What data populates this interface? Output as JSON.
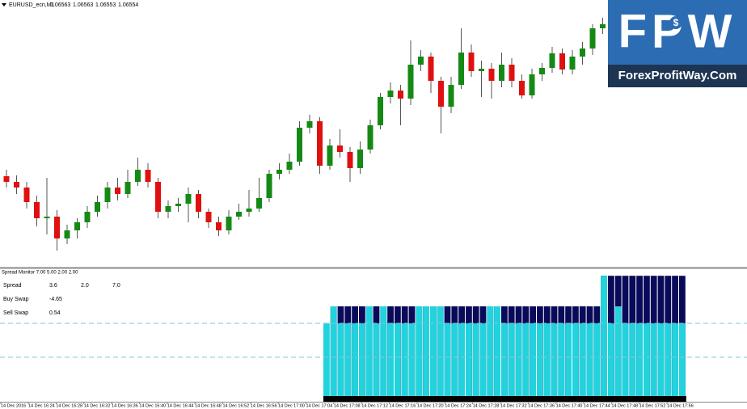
{
  "header": {
    "symbol": "EURUSD_ecn,M1",
    "ohlc": [
      1.06563,
      1.06563,
      1.06553,
      1.06554
    ]
  },
  "chart_data": [
    {
      "type": "candlestick",
      "ylim": [
        1.0639,
        1.0672
      ],
      "up_color": "#148a14",
      "down_color": "#e01010",
      "open": [
        1.06502,
        1.06495,
        1.06488,
        1.0647,
        1.0645,
        1.06452,
        1.06425,
        1.06435,
        1.06445,
        1.06458,
        1.0647,
        1.06488,
        1.0648,
        1.06495,
        1.0651,
        1.06495,
        1.06458,
        1.06465,
        1.06468,
        1.0648,
        1.06458,
        1.06445,
        1.06435,
        1.06452,
        1.06458,
        1.06462,
        1.06475,
        1.06505,
        1.0651,
        1.0652,
        1.06562,
        1.0657,
        1.06515,
        1.0654,
        1.06532,
        1.06512,
        1.06535,
        1.06565,
        1.066,
        1.06608,
        1.06598,
        1.0664,
        1.0665,
        1.0662,
        1.06588,
        1.06615,
        1.06655,
        1.06632,
        1.06635,
        1.0662,
        1.0664,
        1.0662,
        1.06602,
        1.06628,
        1.06636,
        1.06654,
        1.06634,
        1.0665,
        1.0666,
        1.06685
      ],
      "high": [
        1.0651,
        1.06503,
        1.06495,
        1.06478,
        1.065,
        1.0646,
        1.06442,
        1.0645,
        1.06465,
        1.06478,
        1.06495,
        1.065,
        1.0651,
        1.06525,
        1.06518,
        1.065,
        1.06472,
        1.06475,
        1.06488,
        1.06485,
        1.06462,
        1.06452,
        1.0646,
        1.06468,
        1.06485,
        1.065,
        1.0651,
        1.06518,
        1.0653,
        1.0657,
        1.06578,
        1.06575,
        1.06548,
        1.0656,
        1.06538,
        1.06545,
        1.06572,
        1.06605,
        1.06618,
        1.06615,
        1.0667,
        1.06658,
        1.06655,
        1.06625,
        1.06625,
        1.06685,
        1.06665,
        1.06645,
        1.06642,
        1.06655,
        1.06648,
        1.06628,
        1.06635,
        1.06642,
        1.06662,
        1.0666,
        1.06658,
        1.06668,
        1.0669,
        1.06698
      ],
      "low": [
        1.06488,
        1.0648,
        1.06462,
        1.0644,
        1.0643,
        1.0641,
        1.06418,
        1.06425,
        1.06438,
        1.06452,
        1.06462,
        1.06472,
        1.06475,
        1.0649,
        1.06488,
        1.0645,
        1.0645,
        1.06458,
        1.06445,
        1.0645,
        1.06438,
        1.06428,
        1.0643,
        1.06448,
        1.06452,
        1.06458,
        1.0647,
        1.06498,
        1.06505,
        1.06515,
        1.06555,
        1.06505,
        1.0651,
        1.06525,
        1.06495,
        1.06505,
        1.0653,
        1.0656,
        1.06592,
        1.06565,
        1.0659,
        1.06632,
        1.06605,
        1.06555,
        1.0658,
        1.0661,
        1.06625,
        1.066,
        1.06598,
        1.06612,
        1.06612,
        1.06598,
        1.06598,
        1.0662,
        1.0663,
        1.06628,
        1.06628,
        1.0664,
        1.06652,
        1.06678
      ],
      "close": [
        1.06495,
        1.06488,
        1.0647,
        1.0645,
        1.06452,
        1.06425,
        1.06435,
        1.06445,
        1.06458,
        1.0647,
        1.06488,
        1.0648,
        1.06495,
        1.0651,
        1.06495,
        1.06458,
        1.06465,
        1.06468,
        1.0648,
        1.06458,
        1.06445,
        1.06435,
        1.06452,
        1.06458,
        1.06462,
        1.06475,
        1.06505,
        1.0651,
        1.0652,
        1.06562,
        1.0657,
        1.06515,
        1.0654,
        1.06532,
        1.06512,
        1.06535,
        1.06565,
        1.066,
        1.06608,
        1.06598,
        1.0664,
        1.0665,
        1.0662,
        1.06588,
        1.06615,
        1.06655,
        1.06632,
        1.06635,
        1.0662,
        1.0664,
        1.0662,
        1.06602,
        1.06628,
        1.06636,
        1.06654,
        1.06634,
        1.0665,
        1.0666,
        1.06685,
        1.0669
      ]
    },
    {
      "type": "bar",
      "title": "Spread Monitor 7.00 5.00 2.00 2.00",
      "ylim": [
        0,
        8
      ],
      "levels": [
        5,
        3
      ],
      "stats": [
        {
          "label": "Spread",
          "values": [
            3.6,
            {
              "value": 2,
              "label": "2.0"
            },
            {
              "value": 7,
              "label": "7.0"
            }
          ]
        },
        {
          "label": "Buy Swap",
          "values": [
            -4.65
          ]
        },
        {
          "label": "Sell Swap",
          "values": [
            0.54
          ]
        }
      ],
      "series": [
        {
          "color": "#0a0a5a",
          "values": [
            null,
            6,
            6,
            6,
            6,
            6,
            6,
            6,
            6,
            6,
            6,
            6,
            6,
            6,
            6,
            6,
            6,
            6,
            6,
            6,
            6,
            6,
            6,
            6,
            6,
            6,
            6,
            6,
            6,
            6,
            6,
            6,
            6,
            6,
            6,
            6,
            6,
            6,
            6,
            7.8,
            7.8,
            7.8,
            7.8,
            7.8,
            7.8,
            7.8,
            7.8,
            7.8,
            7.8,
            7.8,
            7.8
          ]
        },
        {
          "color": "#22d3dd",
          "values": [
            5,
            6,
            5,
            5,
            5,
            5,
            6,
            5,
            6,
            5,
            5,
            5,
            5,
            6,
            6,
            6,
            6,
            5,
            5,
            5,
            5,
            5,
            5,
            6,
            6,
            5,
            5,
            5,
            5,
            5,
            5,
            5,
            5,
            5,
            5,
            5,
            5,
            5,
            5,
            7.8,
            5,
            6,
            5,
            5,
            5,
            5,
            5,
            5,
            5,
            5,
            5
          ]
        }
      ]
    }
  ],
  "time_axis": [
    "14 Dec 2016",
    "14 Dec 16:24",
    "14 Dec 16:28",
    "14 Dec 16:32",
    "14 Dec 16:36",
    "14 Dec 16:40",
    "14 Dec 16:44",
    "14 Dec 16:48",
    "14 Dec 16:52",
    "14 Dec 16:56",
    "14 Dec 17:00",
    "14 Dec 17:04",
    "14 Dec 17:08",
    "14 Dec 17:12",
    "14 Dec 17:16",
    "14 Dec 17:20",
    "14 Dec 17:24",
    "14 Dec 17:28",
    "14 Dec 17:32",
    "14 Dec 17:36",
    "14 Dec 17:40",
    "14 Dec 17:44",
    "14 Dec 17:48",
    "14 Dec 17:52",
    "14 Dec 17:56"
  ],
  "logo": {
    "text": "FPW",
    "badge": "$",
    "site": "ForexProfitWay.Com"
  }
}
